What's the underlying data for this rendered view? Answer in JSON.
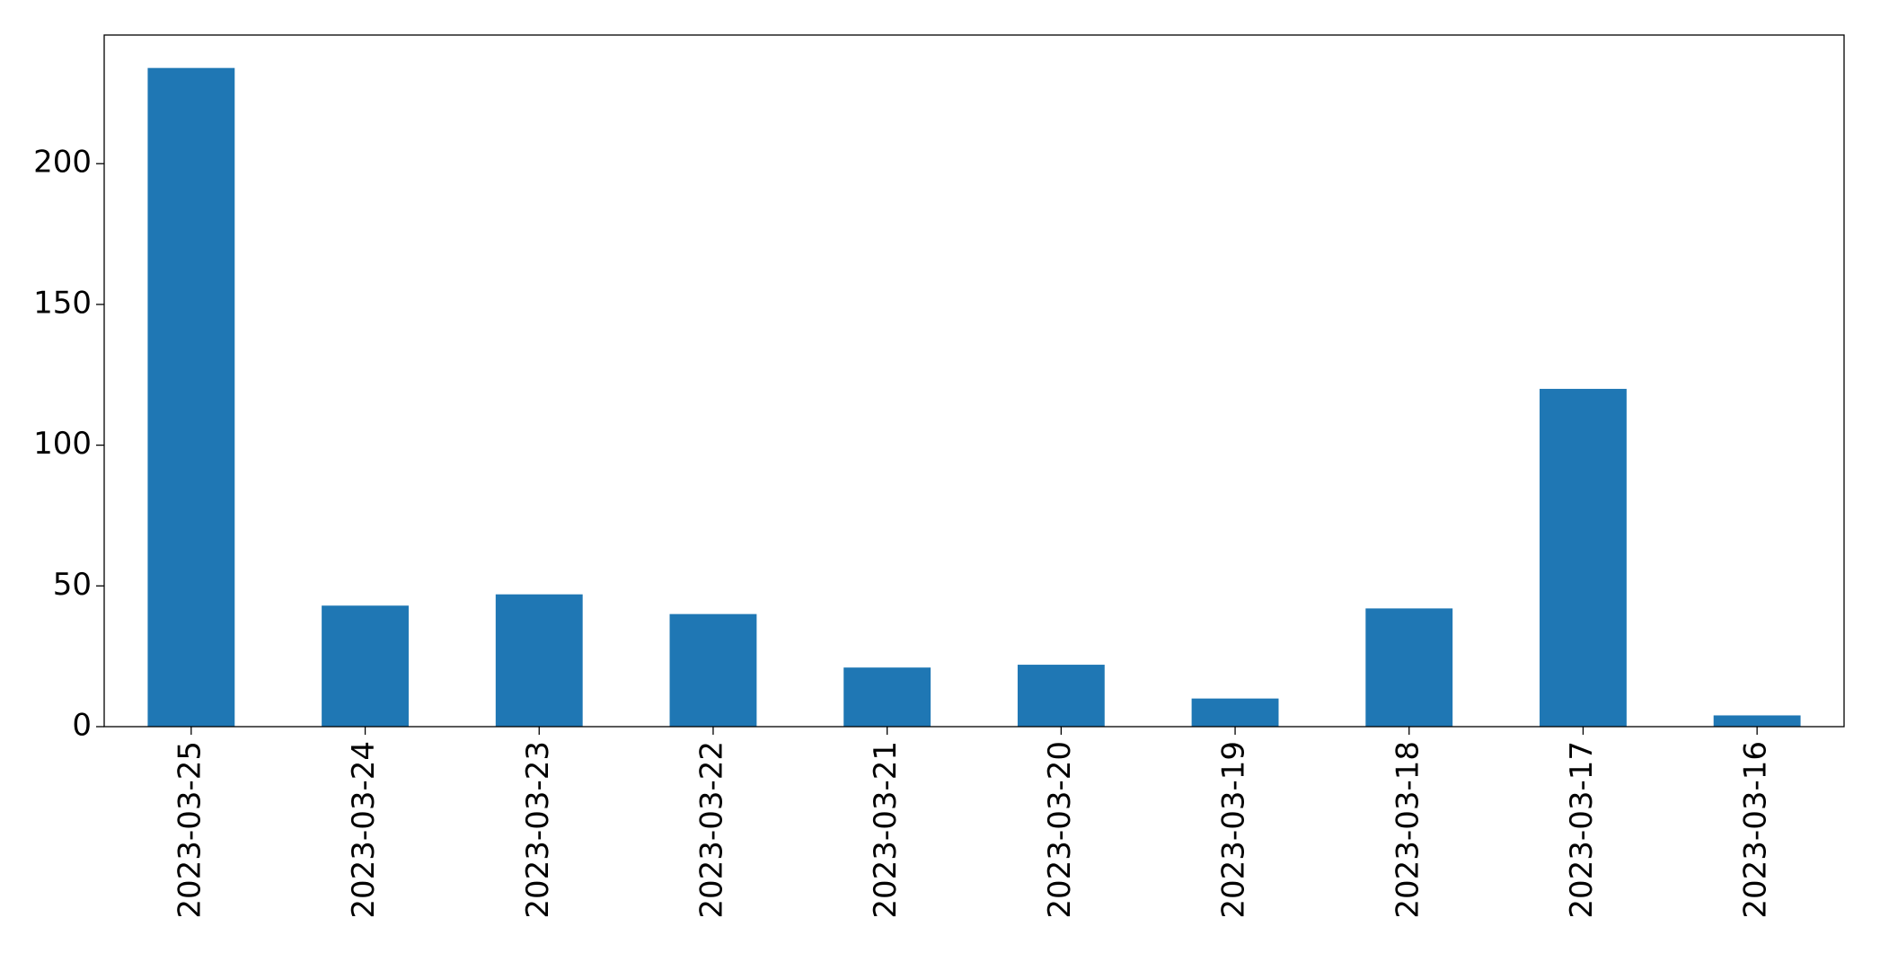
{
  "chart_data": {
    "type": "bar",
    "categories": [
      "2023-03-25",
      "2023-03-24",
      "2023-03-23",
      "2023-03-22",
      "2023-03-21",
      "2023-03-20",
      "2023-03-19",
      "2023-03-18",
      "2023-03-17",
      "2023-03-16"
    ],
    "values": [
      234,
      43,
      47,
      40,
      21,
      22,
      10,
      42,
      120,
      4
    ],
    "color": "#1f77b4",
    "ylim": [
      0,
      245.7
    ],
    "yticks": [
      0,
      50,
      100,
      150,
      200
    ],
    "grid": false
  }
}
